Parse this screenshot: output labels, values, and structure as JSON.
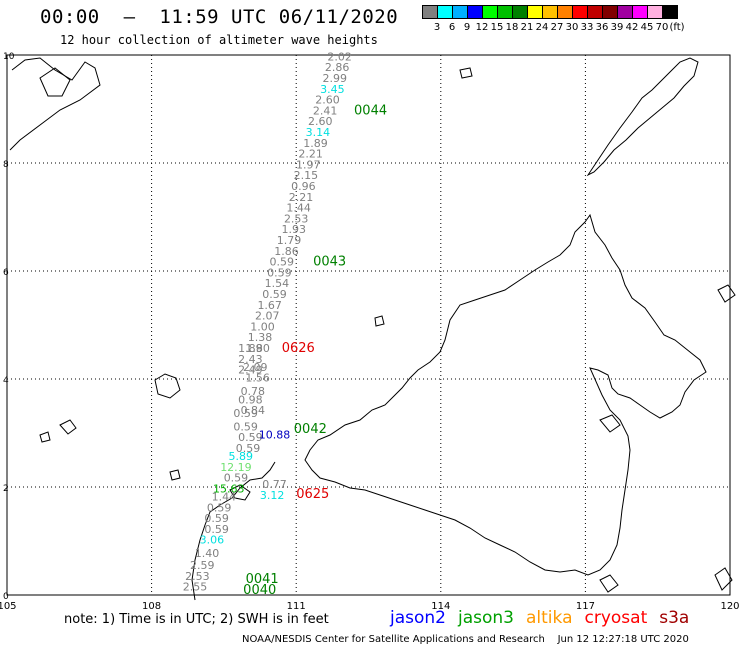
{
  "header": {
    "title": "00:00  –  11:59 UTC 06/11/2020",
    "subtitle": "12 hour collection of altimeter wave heights"
  },
  "legend": {
    "colors": [
      "#808080",
      "#00ffff",
      "#00b0ff",
      "#0000ff",
      "#00ff00",
      "#00c000",
      "#008000",
      "#ffff00",
      "#ffc000",
      "#ff8000",
      "#ff0000",
      "#c00000",
      "#800000",
      "#a000a0",
      "#ff00ff",
      "#ffb0e0",
      "#000000"
    ],
    "labels": [
      "3",
      "6",
      "9",
      "12",
      "15",
      "18",
      "21",
      "24",
      "27",
      "30",
      "33",
      "36",
      "39",
      "42",
      "45",
      "70",
      "(ft)"
    ]
  },
  "axes": {
    "x_ticks": [
      "105",
      "108",
      "111",
      "114",
      "117",
      "120"
    ],
    "y_ticks": [
      "0",
      "2",
      "4",
      "6",
      "8",
      "10"
    ]
  },
  "observations": [
    {
      "value": "2.02",
      "lon": 111.9,
      "lat": 9.9,
      "color": "#808080"
    },
    {
      "value": "2.86",
      "lon": 111.85,
      "lat": 9.7,
      "color": "#808080"
    },
    {
      "value": "2.99",
      "lon": 111.8,
      "lat": 9.5,
      "color": "#808080"
    },
    {
      "value": "3.45",
      "lon": 111.75,
      "lat": 9.3,
      "color": "#00e0e0"
    },
    {
      "value": "2.60",
      "lon": 111.65,
      "lat": 9.1,
      "color": "#808080"
    },
    {
      "value": "2.41",
      "lon": 111.6,
      "lat": 8.9,
      "color": "#808080"
    },
    {
      "value": "2.60",
      "lon": 111.5,
      "lat": 8.7,
      "color": "#808080"
    },
    {
      "value": "3.14",
      "lon": 111.45,
      "lat": 8.5,
      "color": "#00e0e0"
    },
    {
      "value": "1.89",
      "lon": 111.4,
      "lat": 8.3,
      "color": "#808080"
    },
    {
      "value": "2.21",
      "lon": 111.3,
      "lat": 8.1,
      "color": "#808080"
    },
    {
      "value": "1.97",
      "lon": 111.25,
      "lat": 7.9,
      "color": "#808080"
    },
    {
      "value": "2.15",
      "lon": 111.2,
      "lat": 7.7,
      "color": "#808080"
    },
    {
      "value": "0.96",
      "lon": 111.15,
      "lat": 7.5,
      "color": "#808080"
    },
    {
      "value": "2.21",
      "lon": 111.1,
      "lat": 7.3,
      "color": "#808080"
    },
    {
      "value": "1.44",
      "lon": 111.05,
      "lat": 7.1,
      "color": "#808080"
    },
    {
      "value": "2.53",
      "lon": 111.0,
      "lat": 6.9,
      "color": "#808080"
    },
    {
      "value": "1.93",
      "lon": 110.95,
      "lat": 6.7,
      "color": "#808080"
    },
    {
      "value": "1.79",
      "lon": 110.85,
      "lat": 6.5,
      "color": "#808080"
    },
    {
      "value": "1.86",
      "lon": 110.8,
      "lat": 6.3,
      "color": "#808080"
    },
    {
      "value": "0.59",
      "lon": 110.7,
      "lat": 6.1,
      "color": "#808080"
    },
    {
      "value": "0.59",
      "lon": 110.65,
      "lat": 5.9,
      "color": "#808080"
    },
    {
      "value": "1.54",
      "lon": 110.6,
      "lat": 5.7,
      "color": "#808080"
    },
    {
      "value": "0.59",
      "lon": 110.55,
      "lat": 5.5,
      "color": "#808080"
    },
    {
      "value": "1.67",
      "lon": 110.45,
      "lat": 5.3,
      "color": "#808080"
    },
    {
      "value": "2.07",
      "lon": 110.4,
      "lat": 5.1,
      "color": "#808080"
    },
    {
      "value": "1.00",
      "lon": 110.3,
      "lat": 4.9,
      "color": "#808080"
    },
    {
      "value": "1.38",
      "lon": 110.25,
      "lat": 4.7,
      "color": "#808080"
    },
    {
      "value": "1.80",
      "lon": 110.2,
      "lat": 4.5,
      "color": "#808080"
    },
    {
      "value": "1.89",
      "lon": 110.05,
      "lat": 4.5,
      "color": "#808080"
    },
    {
      "value": "2.43",
      "lon": 110.05,
      "lat": 4.3,
      "color": "#808080"
    },
    {
      "value": "2.09",
      "lon": 110.15,
      "lat": 4.15,
      "color": "#808080"
    },
    {
      "value": "2.49",
      "lon": 110.05,
      "lat": 4.1,
      "color": "#808080"
    },
    {
      "value": "1.56",
      "lon": 110.2,
      "lat": 3.95,
      "color": "#808080"
    },
    {
      "value": "0.78",
      "lon": 110.1,
      "lat": 3.7,
      "color": "#808080"
    },
    {
      "value": "0.98",
      "lon": 110.05,
      "lat": 3.55,
      "color": "#808080"
    },
    {
      "value": "0.84",
      "lon": 110.1,
      "lat": 3.35,
      "color": "#808080"
    },
    {
      "value": "0.59",
      "lon": 109.95,
      "lat": 3.3,
      "color": "#808080"
    },
    {
      "value": "0.59",
      "lon": 109.95,
      "lat": 3.05,
      "color": "#808080"
    },
    {
      "value": "0.59",
      "lon": 110.05,
      "lat": 2.85,
      "color": "#808080"
    },
    {
      "value": "0.59",
      "lon": 110.0,
      "lat": 2.65,
      "color": "#808080"
    },
    {
      "value": "5.89",
      "lon": 109.85,
      "lat": 2.5,
      "color": "#00e0e0"
    },
    {
      "value": "12.19",
      "lon": 109.75,
      "lat": 2.3,
      "color": "#70e070"
    },
    {
      "value": "0.59",
      "lon": 109.75,
      "lat": 2.1,
      "color": "#808080"
    },
    {
      "value": "0.77",
      "lon": 110.55,
      "lat": 1.98,
      "color": "#808080"
    },
    {
      "value": "15.63",
      "lon": 109.6,
      "lat": 1.9,
      "color": "#00b000"
    },
    {
      "value": "3.12",
      "lon": 110.5,
      "lat": 1.78,
      "color": "#00e0e0"
    },
    {
      "value": "1.44",
      "lon": 109.5,
      "lat": 1.75,
      "color": "#808080"
    },
    {
      "value": "0.59",
      "lon": 109.4,
      "lat": 1.55,
      "color": "#808080"
    },
    {
      "value": "0.59",
      "lon": 109.35,
      "lat": 1.35,
      "color": "#808080"
    },
    {
      "value": "0.59",
      "lon": 109.35,
      "lat": 1.15,
      "color": "#808080"
    },
    {
      "value": "3.06",
      "lon": 109.25,
      "lat": 0.95,
      "color": "#00e0e0"
    },
    {
      "value": "1.40",
      "lon": 109.15,
      "lat": 0.7,
      "color": "#808080"
    },
    {
      "value": "2.59",
      "lon": 109.05,
      "lat": 0.48,
      "color": "#808080"
    },
    {
      "value": "2.53",
      "lon": 108.95,
      "lat": 0.28,
      "color": "#808080"
    },
    {
      "value": "2.55",
      "lon": 108.9,
      "lat": 0.08,
      "color": "#808080"
    },
    {
      "value": "10.88",
      "lon": 110.55,
      "lat": 2.9,
      "color": "#0000c0"
    }
  ],
  "pass_times": [
    {
      "time": "0044",
      "lon": 112.2,
      "lat": 8.9,
      "color": "#008000"
    },
    {
      "time": "0043",
      "lon": 111.35,
      "lat": 6.1,
      "color": "#008000"
    },
    {
      "time": "0626",
      "lon": 110.7,
      "lat": 4.5,
      "color": "#e00000"
    },
    {
      "time": "0042",
      "lon": 110.95,
      "lat": 3.0,
      "color": "#008000"
    },
    {
      "time": "0625",
      "lon": 111.0,
      "lat": 1.8,
      "color": "#e00000"
    },
    {
      "time": "0041",
      "lon": 109.95,
      "lat": 0.22,
      "color": "#008000"
    },
    {
      "time": "0040",
      "lon": 109.9,
      "lat": 0.02,
      "color": "#008000"
    }
  ],
  "footer": {
    "note": "note:  1) Time is in UTC;  2) SWH is in feet",
    "satellites": [
      {
        "name": "jason2",
        "color": "#0000ff"
      },
      {
        "name": "jason3",
        "color": "#00a000"
      },
      {
        "name": "altika",
        "color": "#ff9900"
      },
      {
        "name": "cryosat",
        "color": "#ff0000"
      },
      {
        "name": "s3a",
        "color": "#a00000"
      }
    ],
    "credit": "NOAA/NESDIS Center for Satellite Applications and Research    Jun 12 12:27:18 UTC 2020"
  }
}
